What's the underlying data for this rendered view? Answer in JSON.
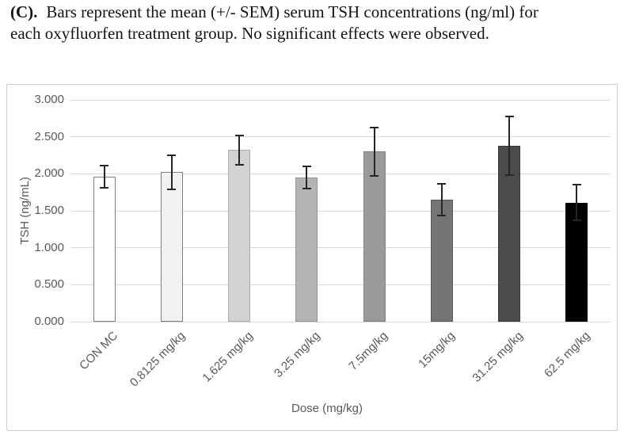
{
  "caption": {
    "label": "(C).",
    "line1": "Bars represent the mean (+/- SEM) serum TSH concentrations (ng/ml) for",
    "line2": "each oxyfluorfen treatment group. No significant effects were observed."
  },
  "chart_data": {
    "type": "bar",
    "title": "",
    "xlabel": "Dose (mg/kg)",
    "ylabel": "TSH (ng/mL)",
    "ylim": [
      0,
      3.0
    ],
    "y_tick_step": 0.5,
    "y_tick_labels": [
      "0.000",
      "0.500",
      "1.000",
      "1.500",
      "2.000",
      "2.500",
      "3.000"
    ],
    "grid": true,
    "legend": "none",
    "categories": [
      "CON MC",
      "0.8125 mg/kg",
      "1.625 mg/kg",
      "3.25 mg/kg",
      "7.5mg/kg",
      "15mg/kg",
      "31.25 mg/kg",
      "62.5 mg/kg"
    ],
    "values": [
      1.96,
      2.02,
      2.32,
      1.95,
      2.3,
      1.65,
      2.38,
      1.61
    ],
    "sem": [
      0.15,
      0.23,
      0.2,
      0.15,
      0.33,
      0.21,
      0.4,
      0.24
    ],
    "bar_fills": [
      "#ffffff",
      "#f2f2f2",
      "#d2d2d2",
      "#b4b4b4",
      "#9a9a9a",
      "#747474",
      "#4b4b4b",
      "#000000"
    ],
    "bar_strokes": [
      "#7f7f7f",
      "#7f7f7f",
      "#acacac",
      "#949494",
      "#7f7f7f",
      "#5a5a5a",
      "#3a3a3a",
      "#000000"
    ],
    "colors": {
      "gridline": "#d9d9d9",
      "axis_text": "#595959",
      "error_bar": "#262626",
      "chart_border": "#cccccc"
    }
  }
}
